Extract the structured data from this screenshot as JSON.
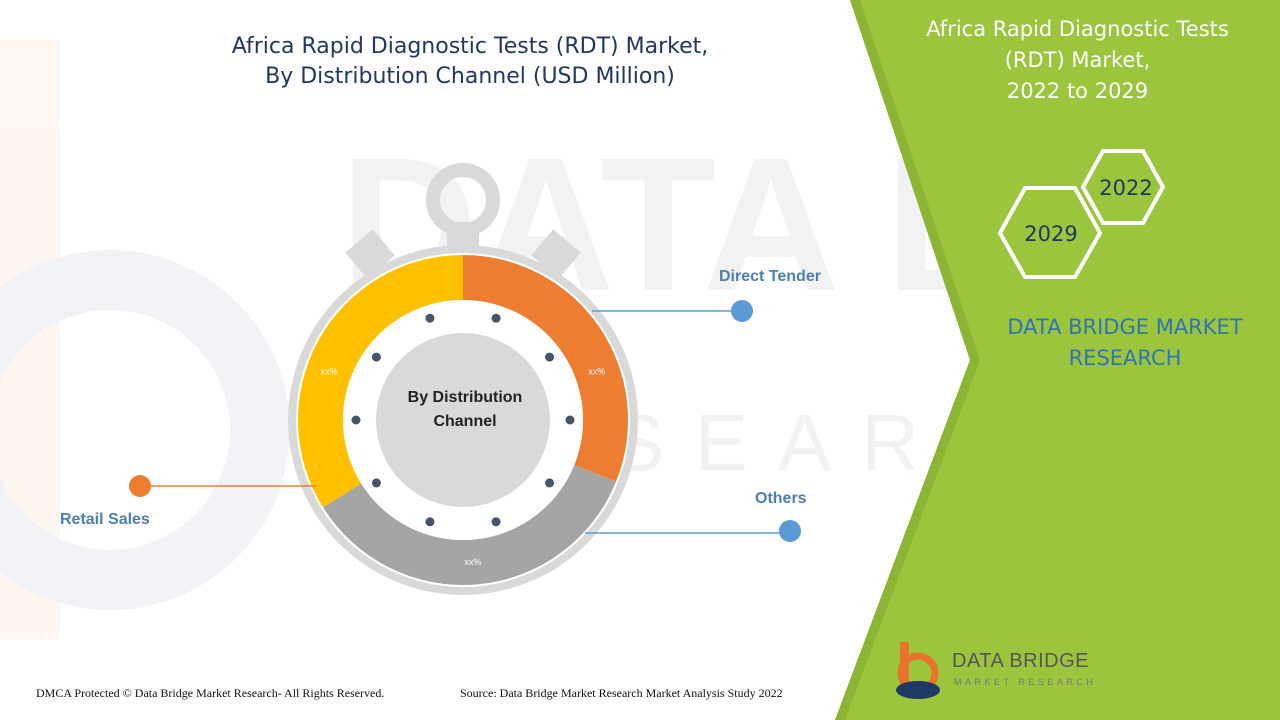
{
  "title": "Africa Rapid Diagnostic Tests (RDT) Market, By Distribution Channel (USD Million)",
  "title_lines": [
    "Africa Rapid Diagnostic Tests (RDT) Market,",
    "By Distribution Channel (USD Million)"
  ],
  "side_panel": {
    "title_lines": [
      "Africa Rapid Diagnostic Tests",
      "(RDT) Market,",
      "2022 to 2029"
    ],
    "year_start": "2022",
    "year_end": "2029",
    "brand_lines": [
      "DATA BRIDGE MARKET",
      "RESEARCH"
    ],
    "accent_color": "#9bc53d"
  },
  "chart_data": {
    "type": "pie",
    "center_label_lines": [
      "By Distribution",
      "Channel"
    ],
    "slices": [
      {
        "name": "Direct Tender",
        "value_label": "xx%",
        "color": "#ed7d31"
      },
      {
        "name": "Others",
        "value_label": "xx%",
        "color": "#a5a5a5"
      },
      {
        "name": "Retail Sales",
        "value_label": "xx%",
        "color": "#ffc000"
      }
    ]
  },
  "footer": {
    "copyright": "DMCA Protected © Data Bridge Market Research- All Rights Reserved.",
    "source": "Source: Data Bridge Market Research Market Analysis Study 2022"
  },
  "logo": {
    "name": "DATA BRIDGE",
    "tagline": "MARKET RESEARCH"
  }
}
